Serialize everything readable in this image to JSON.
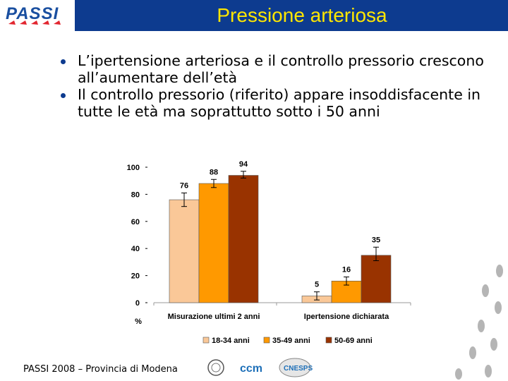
{
  "header": {
    "title": "Pressione arteriosa",
    "logo_text": "PASSI"
  },
  "bullets": [
    "L’ipertensione arteriosa e il controllo pressorio crescono all’aumentare dell’età",
    "Il controllo pressorio (riferito) appare insoddisfacente in tutte le età ma soprattutto sotto i 50 anni"
  ],
  "footer": {
    "source": "PASSI 2008 – Provincia di Modena",
    "logos": [
      "ccm-logo",
      "cnesps-logo",
      "iss-seal-logo"
    ]
  },
  "colors": {
    "title_bar": "#0d3b8f",
    "title_text": "#ffe600",
    "series_1": "#fac898",
    "series_2": "#ff9900",
    "series_3": "#993300"
  },
  "chart_data": {
    "type": "bar",
    "categories": [
      "Misurazione ultimi 2 anni",
      "Ipertensione dichiarata"
    ],
    "series": [
      {
        "name": "18-34 anni",
        "values": [
          76,
          5
        ],
        "error_low": [
          71,
          2
        ],
        "error_high": [
          81,
          8
        ]
      },
      {
        "name": "35-49 anni",
        "values": [
          88,
          16
        ],
        "error_low": [
          85,
          13
        ],
        "error_high": [
          91,
          19
        ]
      },
      {
        "name": "50-69 anni",
        "values": [
          94,
          35
        ],
        "error_low": [
          92,
          31
        ],
        "error_high": [
          97,
          41
        ]
      }
    ],
    "data_labels": [
      [
        "76",
        "5"
      ],
      [
        "88",
        "16"
      ],
      [
        "94",
        "35"
      ]
    ],
    "yticks": [
      "0",
      "20",
      "40",
      "60",
      "80",
      "100"
    ],
    "ylim": [
      0,
      100
    ],
    "yunit": "%",
    "legend_position": "bottom",
    "grid": false
  }
}
